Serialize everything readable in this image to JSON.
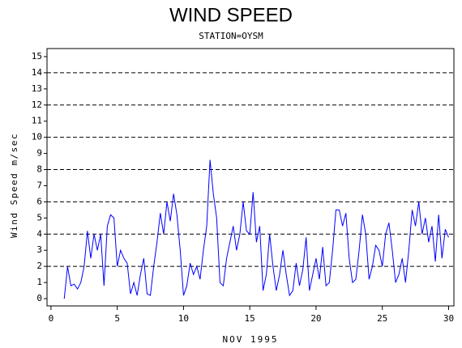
{
  "chart_data": {
    "type": "line",
    "title": "WIND SPEED",
    "subtitle": "STATION=OYSM",
    "xlabel": "NOV 1995",
    "ylabel": "Wind Speed m/sec",
    "x": [
      1,
      1.25,
      1.5,
      1.75,
      2,
      2.25,
      2.5,
      2.75,
      3,
      3.25,
      3.5,
      3.75,
      4,
      4.25,
      4.5,
      4.75,
      5,
      5.25,
      5.5,
      5.75,
      6,
      6.25,
      6.5,
      6.75,
      7,
      7.25,
      7.5,
      7.75,
      8,
      8.25,
      8.5,
      8.75,
      9,
      9.25,
      9.5,
      9.75,
      10,
      10.25,
      10.5,
      10.75,
      11,
      11.25,
      11.5,
      11.75,
      12,
      12.25,
      12.5,
      12.75,
      13,
      13.25,
      13.5,
      13.75,
      14,
      14.25,
      14.5,
      14.75,
      15,
      15.25,
      15.5,
      15.75,
      16,
      16.25,
      16.5,
      16.75,
      17,
      17.25,
      17.5,
      17.75,
      18,
      18.25,
      18.5,
      18.75,
      19,
      19.25,
      19.5,
      19.75,
      20,
      20.25,
      20.5,
      20.75,
      21,
      21.25,
      21.5,
      21.75,
      22,
      22.25,
      22.5,
      22.75,
      23,
      23.25,
      23.5,
      23.75,
      24,
      24.25,
      24.5,
      24.75,
      25,
      25.25,
      25.5,
      25.75,
      26,
      26.25,
      26.5,
      26.75,
      27,
      27.25,
      27.5,
      27.75,
      28,
      28.25,
      28.5,
      28.75,
      29,
      29.25,
      29.5,
      29.75,
      30
    ],
    "series": [
      {
        "name": "Wind Speed",
        "color": "#0000ff",
        "values": [
          0,
          2.0,
          0.8,
          0.9,
          0.6,
          1.0,
          2.0,
          4.2,
          2.5,
          4.0,
          3.0,
          4.0,
          0.8,
          4.5,
          5.2,
          5.0,
          2.0,
          3.0,
          2.5,
          2.2,
          0.3,
          1.0,
          0.2,
          1.5,
          2.5,
          0.3,
          0.2,
          2.0,
          3.5,
          5.3,
          4.0,
          6.0,
          4.8,
          6.5,
          5.2,
          3.0,
          0.2,
          0.8,
          2.2,
          1.5,
          2.0,
          1.2,
          3.0,
          4.5,
          8.6,
          6.5,
          5.0,
          1.0,
          0.8,
          2.5,
          3.5,
          4.5,
          3.0,
          4.0,
          6.0,
          4.2,
          4.0,
          6.6,
          3.5,
          4.5,
          0.5,
          1.5,
          4.0,
          2.0,
          0.5,
          1.5,
          3.0,
          1.5,
          0.2,
          0.5,
          2.2,
          0.8,
          1.8,
          3.8,
          0.5,
          1.5,
          2.5,
          1.2,
          3.2,
          0.8,
          1.0,
          3.0,
          5.5,
          5.5,
          4.5,
          5.3,
          2.5,
          1.0,
          1.2,
          3.0,
          5.2,
          4.0,
          1.2,
          2.0,
          3.3,
          3.0,
          2.0,
          4.0,
          4.7,
          3.0,
          1.0,
          1.5,
          2.5,
          1.0,
          3.0,
          5.5,
          4.5,
          6.0,
          4.0,
          5.0,
          3.5,
          4.5,
          2.3,
          5.2,
          2.5,
          4.3,
          3.8
        ]
      }
    ],
    "xlim": [
      -0.3,
      30.4
    ],
    "xticks": [
      0,
      5,
      10,
      15,
      20,
      25,
      30
    ],
    "ylim": [
      -0.45,
      15.5
    ],
    "yticks": [
      0,
      1,
      2,
      3,
      4,
      5,
      6,
      7,
      8,
      9,
      10,
      11,
      12,
      13,
      14,
      15
    ],
    "ygrid": [
      2,
      4,
      6,
      8,
      10,
      12,
      14
    ]
  }
}
